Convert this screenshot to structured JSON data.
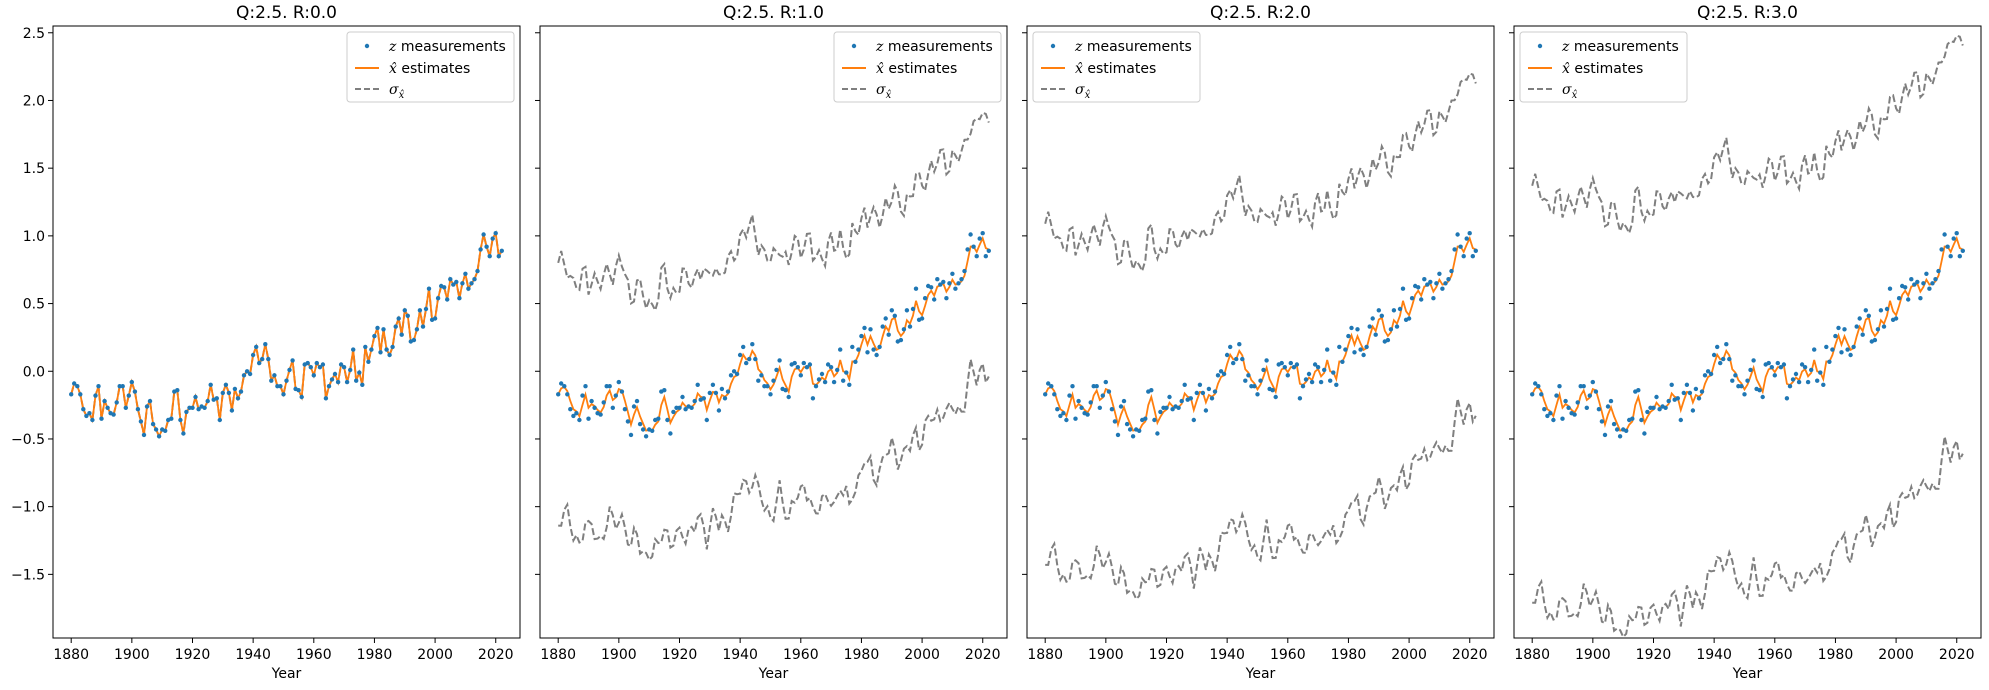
{
  "colors": {
    "measurements": "#1f77b4",
    "estimates": "#ff7f0e",
    "sigma": "#7f7f7f",
    "axes": "#000000"
  },
  "shared": {
    "xlabel": "Year",
    "xticks": [
      1880,
      1900,
      1920,
      1940,
      1960,
      1980,
      2000,
      2020
    ],
    "yticks": [
      "2.5",
      "2.0",
      "1.5",
      "1.0",
      "0.5",
      "0.0",
      "−0.5",
      "−1.0",
      "−1.5"
    ],
    "ytick_values": [
      2.5,
      2.0,
      1.5,
      1.0,
      0.5,
      0.0,
      -0.5,
      -1.0,
      -1.5
    ],
    "legend": {
      "measurements_symbol": "z",
      "measurements_text": " measurements",
      "estimates_symbol": "x̂",
      "estimates_text": " estimates",
      "sigma_symbol": "σ",
      "sigma_sub": "x̂"
    }
  },
  "chart_data": [
    {
      "type": "line",
      "title": "Q:2.5. R:0.0",
      "xlabel": "Year",
      "xlim": [
        1874,
        2028
      ],
      "ylim": [
        -1.97,
        2.55
      ],
      "legend_position": "top-right",
      "sigma_offset": 0.0,
      "series": [
        {
          "name": "z measurements"
        },
        {
          "name": "x̂ estimates"
        },
        {
          "name": "σx̂"
        }
      ]
    },
    {
      "type": "line",
      "title": "Q:2.5. R:1.0",
      "xlabel": "Year",
      "xlim": [
        1874,
        2028
      ],
      "ylim": [
        -1.97,
        2.55
      ],
      "legend_position": "top-right",
      "sigma_offset": 0.93,
      "series": [
        {
          "name": "z measurements"
        },
        {
          "name": "x̂ estimates"
        },
        {
          "name": "σx̂"
        }
      ]
    },
    {
      "type": "line",
      "title": "Q:2.5. R:2.0",
      "xlabel": "Year",
      "xlim": [
        1874,
        2028
      ],
      "ylim": [
        -1.97,
        2.55
      ],
      "legend_position": "top-left",
      "sigma_offset": 1.22,
      "series": [
        {
          "name": "z measurements"
        },
        {
          "name": "x̂ estimates"
        },
        {
          "name": "σx̂"
        }
      ]
    },
    {
      "type": "line",
      "title": "Q:2.5. R:3.0",
      "xlabel": "Year",
      "xlim": [
        1874,
        2028
      ],
      "ylim": [
        -1.97,
        2.55
      ],
      "legend_position": "top-left",
      "sigma_offset": 1.5,
      "series": [
        {
          "name": "z measurements"
        },
        {
          "name": "x̂ estimates"
        },
        {
          "name": "σx̂"
        }
      ]
    }
  ],
  "measurements": {
    "years": [
      1880,
      1881,
      1882,
      1883,
      1884,
      1885,
      1886,
      1887,
      1888,
      1889,
      1890,
      1891,
      1892,
      1893,
      1894,
      1895,
      1896,
      1897,
      1898,
      1899,
      1900,
      1901,
      1902,
      1903,
      1904,
      1905,
      1906,
      1907,
      1908,
      1909,
      1910,
      1911,
      1912,
      1913,
      1914,
      1915,
      1916,
      1917,
      1918,
      1919,
      1920,
      1921,
      1922,
      1923,
      1924,
      1925,
      1926,
      1927,
      1928,
      1929,
      1930,
      1931,
      1932,
      1933,
      1934,
      1935,
      1936,
      1937,
      1938,
      1939,
      1940,
      1941,
      1942,
      1943,
      1944,
      1945,
      1946,
      1947,
      1948,
      1949,
      1950,
      1951,
      1952,
      1953,
      1954,
      1955,
      1956,
      1957,
      1958,
      1959,
      1960,
      1961,
      1962,
      1963,
      1964,
      1965,
      1966,
      1967,
      1968,
      1969,
      1970,
      1971,
      1972,
      1973,
      1974,
      1975,
      1976,
      1977,
      1978,
      1979,
      1980,
      1981,
      1982,
      1983,
      1984,
      1985,
      1986,
      1987,
      1988,
      1989,
      1990,
      1991,
      1992,
      1993,
      1994,
      1995,
      1996,
      1997,
      1998,
      1999,
      2000,
      2001,
      2002,
      2003,
      2004,
      2005,
      2006,
      2007,
      2008,
      2009,
      2010,
      2011,
      2012,
      2013,
      2014,
      2015,
      2016,
      2017,
      2018,
      2019,
      2020,
      2021,
      2022
    ],
    "z": [
      -0.17,
      -0.09,
      -0.11,
      -0.17,
      -0.28,
      -0.33,
      -0.31,
      -0.36,
      -0.18,
      -0.11,
      -0.35,
      -0.22,
      -0.27,
      -0.31,
      -0.32,
      -0.23,
      -0.11,
      -0.11,
      -0.27,
      -0.18,
      -0.08,
      -0.15,
      -0.28,
      -0.37,
      -0.47,
      -0.26,
      -0.22,
      -0.39,
      -0.43,
      -0.48,
      -0.43,
      -0.44,
      -0.36,
      -0.35,
      -0.15,
      -0.14,
      -0.36,
      -0.46,
      -0.3,
      -0.27,
      -0.27,
      -0.19,
      -0.28,
      -0.26,
      -0.27,
      -0.22,
      -0.1,
      -0.21,
      -0.2,
      -0.36,
      -0.16,
      -0.1,
      -0.16,
      -0.29,
      -0.13,
      -0.2,
      -0.15,
      -0.03,
      -0.0,
      -0.02,
      0.12,
      0.18,
      0.06,
      0.09,
      0.2,
      0.09,
      -0.07,
      -0.03,
      -0.11,
      -0.11,
      -0.17,
      -0.07,
      0.01,
      0.08,
      -0.13,
      -0.14,
      -0.19,
      0.05,
      0.06,
      0.03,
      -0.03,
      0.06,
      0.03,
      0.05,
      -0.2,
      -0.11,
      -0.06,
      -0.02,
      -0.08,
      0.05,
      0.03,
      -0.08,
      0.01,
      0.16,
      -0.07,
      -0.01,
      -0.1,
      0.18,
      0.07,
      0.16,
      0.26,
      0.32,
      0.14,
      0.31,
      0.16,
      0.12,
      0.18,
      0.33,
      0.39,
      0.27,
      0.45,
      0.41,
      0.22,
      0.23,
      0.31,
      0.45,
      0.33,
      0.46,
      0.61,
      0.38,
      0.39,
      0.54,
      0.63,
      0.62,
      0.53,
      0.68,
      0.64,
      0.66,
      0.54,
      0.65,
      0.72,
      0.61,
      0.65,
      0.68,
      0.74,
      0.9,
      1.01,
      0.92,
      0.85,
      0.98,
      1.02,
      0.85,
      0.89
    ]
  }
}
